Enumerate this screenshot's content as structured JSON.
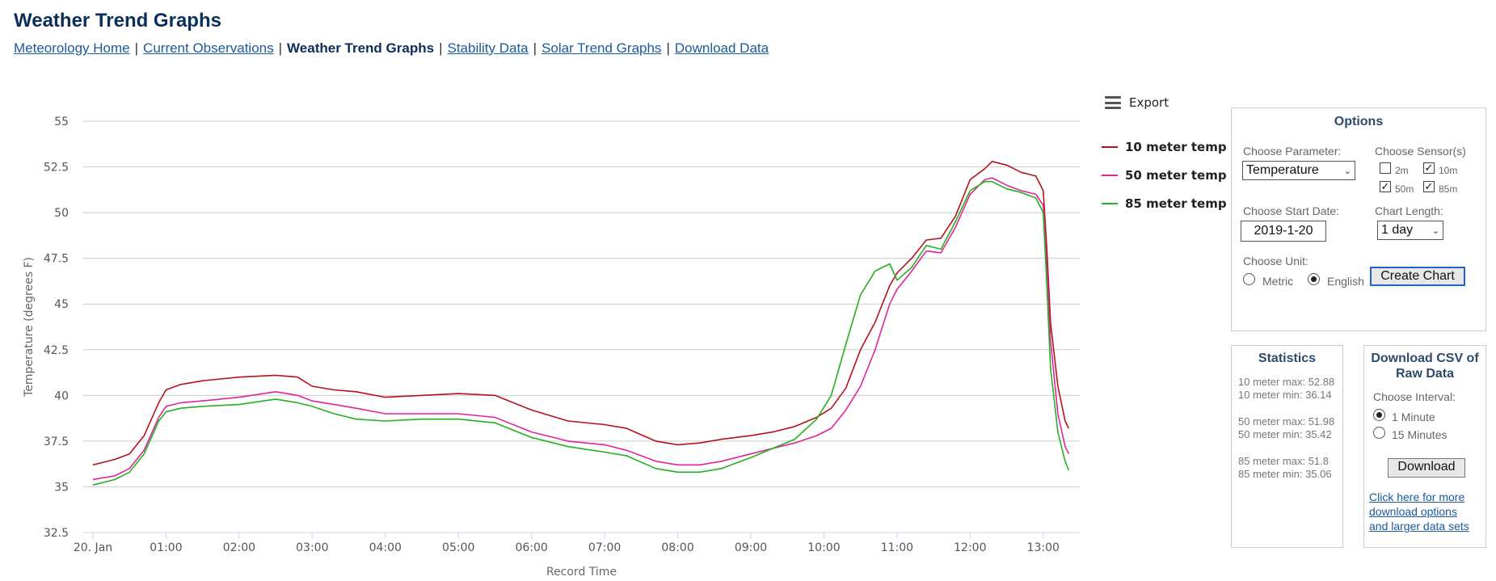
{
  "header": {
    "title": "Weather Trend Graphs",
    "nav": [
      {
        "label": "Meteorology Home",
        "current": false
      },
      {
        "label": "Current Observations",
        "current": false
      },
      {
        "label": "Weather Trend Graphs",
        "current": true
      },
      {
        "label": "Stability Data",
        "current": false
      },
      {
        "label": "Solar Trend Graphs",
        "current": false
      },
      {
        "label": "Download Data",
        "current": false
      }
    ],
    "separator": "|"
  },
  "export": {
    "label": "Export",
    "icon": "hamburger-menu-icon"
  },
  "options": {
    "title": "Options",
    "parameter_label": "Choose Parameter:",
    "parameter_value": "Temperature",
    "sensors_label": "Choose Sensor(s)",
    "sensors": [
      {
        "label": "2m",
        "checked": false
      },
      {
        "label": "10m",
        "checked": true
      },
      {
        "label": "50m",
        "checked": true
      },
      {
        "label": "85m",
        "checked": true
      }
    ],
    "start_date_label": "Choose Start Date:",
    "start_date_value": "2019-1-20",
    "chart_length_label": "Chart Length:",
    "chart_length_value": "1 day",
    "unit_label": "Choose Unit:",
    "units": [
      {
        "label": "Metric",
        "selected": false
      },
      {
        "label": "English",
        "selected": true
      }
    ],
    "create_button": "Create Chart"
  },
  "statistics": {
    "title": "Statistics",
    "lines": [
      "10 meter max: 52.88",
      "10 meter min: 36.14",
      "50 meter max: 51.98",
      "50 meter min: 35.42",
      "85 meter max: 51.8",
      "85 meter min: 35.06"
    ]
  },
  "download": {
    "title_line1": "Download CSV of",
    "title_line2": "Raw Data",
    "interval_label": "Choose Interval:",
    "intervals": [
      {
        "label": "1 Minute",
        "selected": true
      },
      {
        "label": "15 Minutes",
        "selected": false
      }
    ],
    "button": "Download",
    "link_lines": [
      "Click here for more",
      "download options",
      "and larger data sets"
    ]
  },
  "chart_data": {
    "type": "line",
    "xlabel": "Record Time",
    "ylabel": "Temperature (degrees F)",
    "ylim": [
      32.5,
      55
    ],
    "yticks": [
      "32.5",
      "35",
      "37.5",
      "40",
      "42.5",
      "45",
      "47.5",
      "50",
      "52.5",
      "55"
    ],
    "xlim": [
      0,
      13.5
    ],
    "xticks": [
      {
        "value": 0,
        "label": "20. Jan"
      },
      {
        "value": 1,
        "label": "01:00"
      },
      {
        "value": 2,
        "label": "02:00"
      },
      {
        "value": 3,
        "label": "03:00"
      },
      {
        "value": 4,
        "label": "04:00"
      },
      {
        "value": 5,
        "label": "05:00"
      },
      {
        "value": 6,
        "label": "06:00"
      },
      {
        "value": 7,
        "label": "07:00"
      },
      {
        "value": 8,
        "label": "08:00"
      },
      {
        "value": 9,
        "label": "09:00"
      },
      {
        "value": 10,
        "label": "10:00"
      },
      {
        "value": 11,
        "label": "11:00"
      },
      {
        "value": 12,
        "label": "12:00"
      },
      {
        "value": 13,
        "label": "13:00"
      }
    ],
    "grid": true,
    "legend_position": "right",
    "series": [
      {
        "name": "10 meter temp",
        "color": "#b5121b",
        "x": [
          0,
          0.3,
          0.5,
          0.7,
          0.9,
          1.0,
          1.2,
          1.5,
          2.0,
          2.5,
          2.8,
          3.0,
          3.3,
          3.6,
          4.0,
          4.5,
          5.0,
          5.5,
          6.0,
          6.5,
          7.0,
          7.3,
          7.7,
          8.0,
          8.3,
          8.6,
          9.0,
          9.3,
          9.6,
          9.9,
          10.1,
          10.3,
          10.5,
          10.7,
          10.9,
          11.0,
          11.2,
          11.4,
          11.6,
          11.8,
          12.0,
          12.2,
          12.3,
          12.5,
          12.7,
          12.9,
          13.0,
          13.05,
          13.1,
          13.2,
          13.3,
          13.35
        ],
        "y": [
          36.2,
          36.5,
          36.8,
          37.8,
          39.6,
          40.3,
          40.6,
          40.8,
          41.0,
          41.1,
          41.0,
          40.5,
          40.3,
          40.2,
          39.9,
          40.0,
          40.1,
          40.0,
          39.2,
          38.6,
          38.4,
          38.2,
          37.5,
          37.3,
          37.4,
          37.6,
          37.8,
          38.0,
          38.3,
          38.8,
          39.3,
          40.4,
          42.5,
          44.0,
          46.0,
          46.7,
          47.5,
          48.5,
          48.6,
          49.8,
          51.8,
          52.4,
          52.8,
          52.6,
          52.2,
          52.0,
          51.2,
          48.0,
          44.0,
          40.5,
          38.6,
          38.2
        ]
      },
      {
        "name": "50 meter temp",
        "color": "#e0249b",
        "x": [
          0,
          0.3,
          0.5,
          0.7,
          0.9,
          1.0,
          1.2,
          1.5,
          2.0,
          2.5,
          2.8,
          3.0,
          3.3,
          3.6,
          4.0,
          4.5,
          5.0,
          5.5,
          6.0,
          6.5,
          7.0,
          7.3,
          7.7,
          8.0,
          8.3,
          8.6,
          9.0,
          9.3,
          9.6,
          9.9,
          10.1,
          10.3,
          10.5,
          10.7,
          10.9,
          11.0,
          11.2,
          11.4,
          11.6,
          11.8,
          12.0,
          12.2,
          12.3,
          12.5,
          12.7,
          12.9,
          13.0,
          13.05,
          13.1,
          13.2,
          13.3,
          13.35
        ],
        "y": [
          35.4,
          35.6,
          36.0,
          37.0,
          38.8,
          39.4,
          39.6,
          39.7,
          39.9,
          40.2,
          40.0,
          39.7,
          39.5,
          39.3,
          39.0,
          39.0,
          39.0,
          38.8,
          38.0,
          37.5,
          37.3,
          37.0,
          36.4,
          36.2,
          36.2,
          36.4,
          36.8,
          37.1,
          37.4,
          37.8,
          38.2,
          39.2,
          40.5,
          42.5,
          45.0,
          45.8,
          46.8,
          47.9,
          47.8,
          49.2,
          51.0,
          51.8,
          51.9,
          51.5,
          51.2,
          51.0,
          50.4,
          47.0,
          43.0,
          39.0,
          37.2,
          36.8
        ]
      },
      {
        "name": "85 meter temp",
        "color": "#22b11f",
        "x": [
          0,
          0.3,
          0.5,
          0.7,
          0.9,
          1.0,
          1.2,
          1.5,
          2.0,
          2.5,
          2.8,
          3.0,
          3.3,
          3.6,
          4.0,
          4.5,
          5.0,
          5.5,
          6.0,
          6.5,
          7.0,
          7.3,
          7.7,
          8.0,
          8.3,
          8.6,
          9.0,
          9.3,
          9.6,
          9.9,
          10.1,
          10.3,
          10.5,
          10.7,
          10.9,
          11.0,
          11.2,
          11.4,
          11.6,
          11.8,
          12.0,
          12.2,
          12.3,
          12.5,
          12.7,
          12.9,
          13.0,
          13.05,
          13.1,
          13.2,
          13.3,
          13.35
        ],
        "y": [
          35.1,
          35.4,
          35.8,
          36.8,
          38.6,
          39.1,
          39.3,
          39.4,
          39.5,
          39.8,
          39.6,
          39.4,
          39.0,
          38.7,
          38.6,
          38.7,
          38.7,
          38.5,
          37.7,
          37.2,
          36.9,
          36.7,
          36.0,
          35.8,
          35.8,
          36.0,
          36.6,
          37.1,
          37.6,
          38.7,
          40.0,
          42.8,
          45.5,
          46.8,
          47.2,
          46.3,
          47.0,
          48.2,
          48.0,
          49.5,
          51.2,
          51.7,
          51.7,
          51.3,
          51.1,
          50.8,
          50.0,
          46.0,
          41.5,
          38.0,
          36.4,
          35.9
        ]
      }
    ]
  }
}
